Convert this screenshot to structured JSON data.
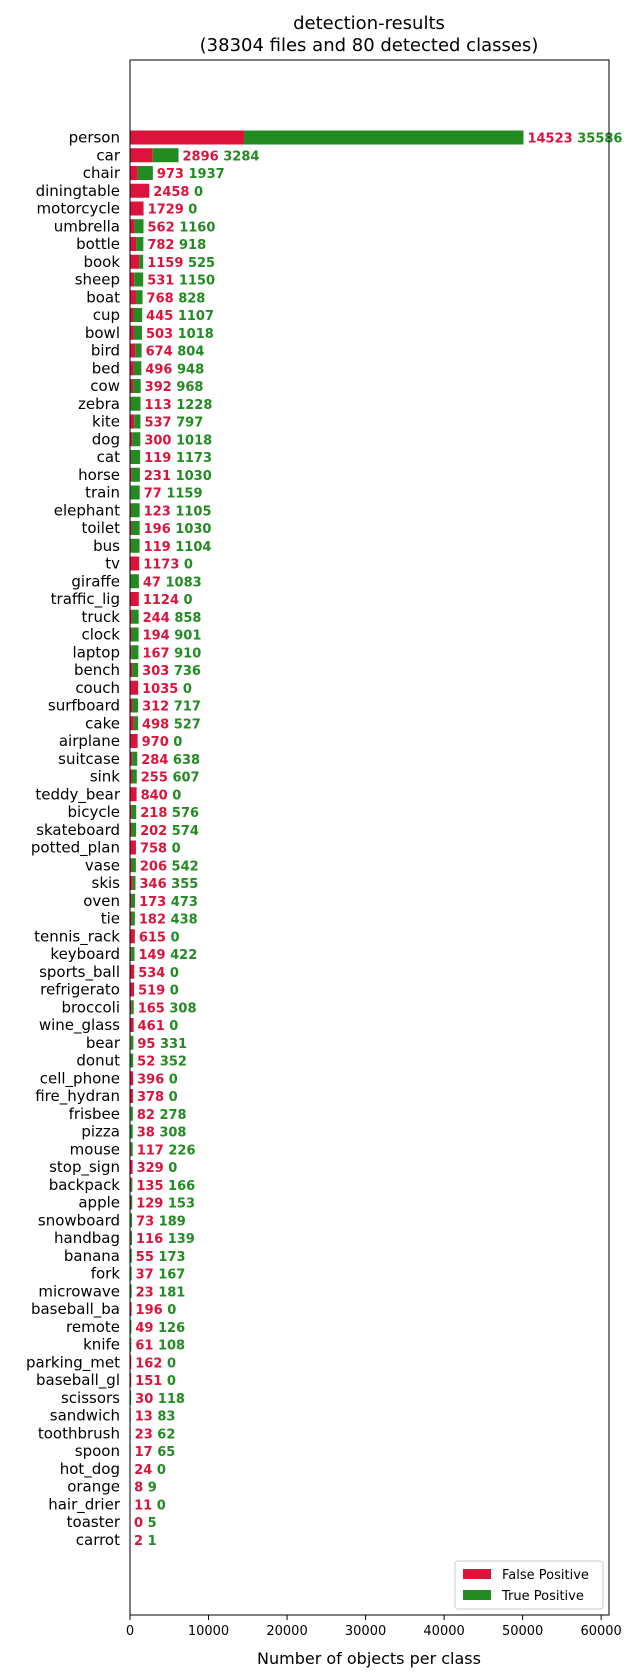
{
  "chart_data": {
    "type": "bar",
    "orientation": "horizontal",
    "stacked": true,
    "title": "detection-results",
    "subtitle": "(38304 files and 80 detected classes)",
    "xlabel": "Number of objects per class",
    "ylabel": "",
    "xlim": [
      0,
      61000
    ],
    "xticks": [
      0,
      10000,
      20000,
      30000,
      40000,
      50000,
      60000
    ],
    "xtick_labels": [
      "0",
      "10000",
      "20000",
      "30000",
      "40000",
      "50000",
      "60000"
    ],
    "grid": false,
    "legend_position": "lower-right",
    "colors": {
      "false_positive": "#dc143c",
      "true_positive": "#228b22"
    },
    "categories": [
      "person",
      "car",
      "chair",
      "diningtable",
      "motorcycle",
      "umbrella",
      "bottle",
      "book",
      "sheep",
      "boat",
      "cup",
      "bowl",
      "bird",
      "bed",
      "cow",
      "zebra",
      "kite",
      "dog",
      "cat",
      "horse",
      "train",
      "elephant",
      "toilet",
      "bus",
      "tv",
      "giraffe",
      "traffic_lig",
      "truck",
      "clock",
      "laptop",
      "bench",
      "couch",
      "surfboard",
      "cake",
      "airplane",
      "suitcase",
      "sink",
      "teddy_bear",
      "bicycle",
      "skateboard",
      "potted_plan",
      "vase",
      "skis",
      "oven",
      "tie",
      "tennis_rack",
      "keyboard",
      "sports_ball",
      "refrigerato",
      "broccoli",
      "wine_glass",
      "bear",
      "donut",
      "cell_phone",
      "fire_hydran",
      "frisbee",
      "pizza",
      "mouse",
      "stop_sign",
      "backpack",
      "apple",
      "snowboard",
      "handbag",
      "banana",
      "fork",
      "microwave",
      "baseball_ba",
      "remote",
      "knife",
      "parking_met",
      "baseball_gl",
      "scissors",
      "sandwich",
      "toothbrush",
      "spoon",
      "hot_dog",
      "orange",
      "hair_drier",
      "toaster",
      "carrot"
    ],
    "series": [
      {
        "name": "False Positive",
        "values": [
          14523,
          2896,
          973,
          2458,
          1729,
          562,
          782,
          1159,
          531,
          768,
          445,
          503,
          674,
          496,
          392,
          113,
          537,
          300,
          119,
          231,
          77,
          123,
          196,
          119,
          1173,
          47,
          1124,
          244,
          194,
          167,
          303,
          1035,
          312,
          498,
          970,
          284,
          255,
          840,
          218,
          202,
          758,
          206,
          346,
          173,
          182,
          615,
          149,
          534,
          519,
          165,
          461,
          95,
          52,
          396,
          378,
          82,
          38,
          117,
          329,
          135,
          129,
          73,
          116,
          55,
          37,
          23,
          196,
          49,
          61,
          162,
          151,
          30,
          13,
          23,
          17,
          24,
          8,
          11,
          0,
          2
        ]
      },
      {
        "name": "True Positive",
        "values": [
          35586,
          3284,
          1937,
          0,
          0,
          1160,
          918,
          525,
          1150,
          828,
          1107,
          1018,
          804,
          948,
          968,
          1228,
          797,
          1018,
          1173,
          1030,
          1159,
          1105,
          1030,
          1104,
          0,
          1083,
          0,
          858,
          901,
          910,
          736,
          0,
          717,
          527,
          0,
          638,
          607,
          0,
          576,
          574,
          0,
          542,
          355,
          473,
          438,
          0,
          422,
          0,
          0,
          308,
          0,
          331,
          352,
          0,
          0,
          278,
          308,
          226,
          0,
          166,
          153,
          189,
          139,
          173,
          167,
          181,
          0,
          126,
          108,
          0,
          0,
          118,
          83,
          62,
          65,
          0,
          9,
          0,
          5,
          1
        ]
      }
    ]
  }
}
